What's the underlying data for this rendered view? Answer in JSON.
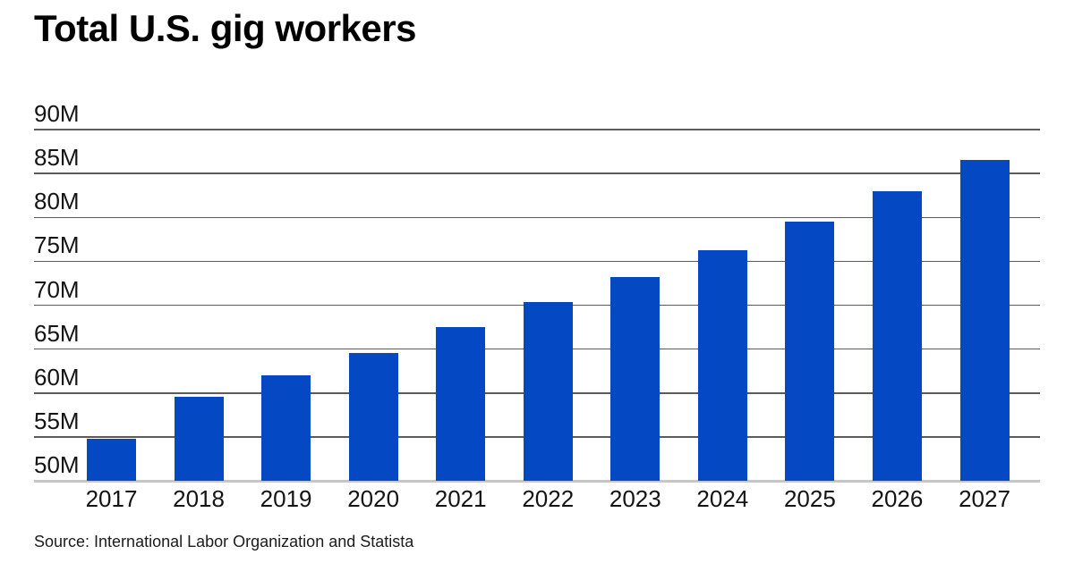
{
  "page": {
    "title": "Total U.S. gig workers",
    "source_line": "Source: International Labor Organization and Statista"
  },
  "chart_data": {
    "type": "bar",
    "title": "Total U.S. gig workers",
    "categories": [
      "2017",
      "2018",
      "2019",
      "2020",
      "2021",
      "2022",
      "2023",
      "2024",
      "2025",
      "2026",
      "2027"
    ],
    "values": [
      54.8,
      59.6,
      62.0,
      64.6,
      67.5,
      70.4,
      73.2,
      76.3,
      79.5,
      83.0,
      86.5
    ],
    "values_unit": "million workers",
    "xlabel": "",
    "ylabel": "",
    "ylim": [
      50,
      90
    ],
    "y_ticks": [
      50,
      55,
      60,
      65,
      70,
      75,
      80,
      85,
      90
    ],
    "y_tick_labels": [
      "50M",
      "55M",
      "60M",
      "65M",
      "70M",
      "75M",
      "80M",
      "85M",
      "90M"
    ],
    "grid": true,
    "legend": false,
    "colors": {
      "bar": "#0448c4",
      "gridline": "#5b5b5b",
      "axis_baseline": "#c6c6c6",
      "text": "#141414"
    },
    "source": "Source: International Labor Organization and Statista"
  }
}
